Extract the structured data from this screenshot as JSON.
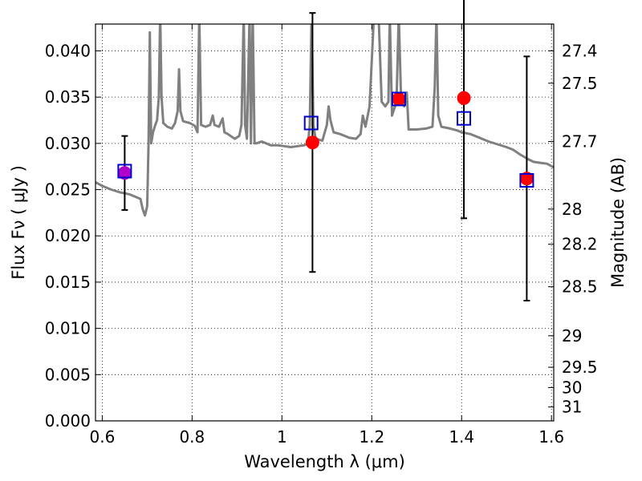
{
  "chart_data": {
    "type": "scatter",
    "xlabel": "Wavelength  λ (μm)",
    "ylabel": "Flux  Fν  ( μJy )",
    "ylabel_right": "Magnitude (AB)",
    "xlim": [
      0.585,
      1.605
    ],
    "ylim": [
      0.0,
      0.0429
    ],
    "grid": true,
    "x_ticks": [
      0.6,
      0.8,
      1.0,
      1.2,
      1.4,
      1.6
    ],
    "x_tick_labels": [
      "0.6",
      "0.8",
      "1",
      "1.2",
      "1.4",
      "1.6"
    ],
    "y_ticks": [
      0.0,
      0.005,
      0.01,
      0.015,
      0.02,
      0.025,
      0.03,
      0.035,
      0.04
    ],
    "y_tick_labels": [
      "0.000",
      "0.005",
      "0.010",
      "0.015",
      "0.020",
      "0.025",
      "0.030",
      "0.035",
      "0.040"
    ],
    "right_ticks": [
      {
        "label": "27.4",
        "flux": 0.04
      },
      {
        "label": "27.5",
        "flux": 0.0365
      },
      {
        "label": "27.7",
        "flux": 0.0302
      },
      {
        "label": "28",
        "flux": 0.0229
      },
      {
        "label": "28.2",
        "flux": 0.0191
      },
      {
        "label": "28.5",
        "flux": 0.0145
      },
      {
        "label": "29",
        "flux": 0.0092
      },
      {
        "label": "29.5",
        "flux": 0.0058
      },
      {
        "label": "30",
        "flux": 0.0036
      },
      {
        "label": "31",
        "flux": 0.0015
      }
    ],
    "series": [
      {
        "kind": "model-spectrum",
        "color": "#808080",
        "points": [
          [
            0.585,
            0.0258
          ],
          [
            0.6,
            0.0254
          ],
          [
            0.62,
            0.025
          ],
          [
            0.64,
            0.0247
          ],
          [
            0.66,
            0.0245
          ],
          [
            0.675,
            0.0242
          ],
          [
            0.685,
            0.024
          ],
          [
            0.69,
            0.0229
          ],
          [
            0.695,
            0.0222
          ],
          [
            0.7,
            0.0232
          ],
          [
            0.703,
            0.03
          ],
          [
            0.706,
            0.042
          ],
          [
            0.709,
            0.03
          ],
          [
            0.713,
            0.0312
          ],
          [
            0.718,
            0.032
          ],
          [
            0.722,
            0.0325
          ],
          [
            0.726,
            0.035
          ],
          [
            0.729,
            0.044
          ],
          [
            0.732,
            0.035
          ],
          [
            0.736,
            0.0322
          ],
          [
            0.745,
            0.0318
          ],
          [
            0.755,
            0.0316
          ],
          [
            0.762,
            0.0322
          ],
          [
            0.768,
            0.0335
          ],
          [
            0.771,
            0.038
          ],
          [
            0.774,
            0.0335
          ],
          [
            0.78,
            0.0324
          ],
          [
            0.795,
            0.0322
          ],
          [
            0.806,
            0.0319
          ],
          [
            0.812,
            0.0312
          ],
          [
            0.816,
            0.044
          ],
          [
            0.82,
            0.032
          ],
          [
            0.83,
            0.0318
          ],
          [
            0.84,
            0.032
          ],
          [
            0.846,
            0.033
          ],
          [
            0.85,
            0.032
          ],
          [
            0.86,
            0.0318
          ],
          [
            0.868,
            0.0327
          ],
          [
            0.872,
            0.0312
          ],
          [
            0.88,
            0.031
          ],
          [
            0.895,
            0.0305
          ],
          [
            0.905,
            0.0308
          ],
          [
            0.91,
            0.032
          ],
          [
            0.915,
            0.044
          ],
          [
            0.918,
            0.032
          ],
          [
            0.922,
            0.0305
          ],
          [
            0.928,
            0.044
          ],
          [
            0.931,
            0.03
          ],
          [
            0.935,
            0.044
          ],
          [
            0.939,
            0.03
          ],
          [
            0.943,
            0.03
          ],
          [
            0.955,
            0.0302
          ],
          [
            0.965,
            0.03
          ],
          [
            0.975,
            0.0298
          ],
          [
            0.99,
            0.0298
          ],
          [
            1.005,
            0.0297
          ],
          [
            1.02,
            0.0296
          ],
          [
            1.035,
            0.0297
          ],
          [
            1.05,
            0.0298
          ],
          [
            1.058,
            0.03
          ],
          [
            1.062,
            0.032
          ],
          [
            1.066,
            0.044
          ],
          [
            1.07,
            0.032
          ],
          [
            1.075,
            0.0305
          ],
          [
            1.09,
            0.0303
          ],
          [
            1.1,
            0.032
          ],
          [
            1.104,
            0.034
          ],
          [
            1.108,
            0.0325
          ],
          [
            1.115,
            0.0312
          ],
          [
            1.13,
            0.031
          ],
          [
            1.15,
            0.0306
          ],
          [
            1.165,
            0.0305
          ],
          [
            1.175,
            0.031
          ],
          [
            1.18,
            0.033
          ],
          [
            1.186,
            0.0318
          ],
          [
            1.195,
            0.034
          ],
          [
            1.205,
            0.044
          ],
          [
            1.215,
            0.044
          ],
          [
            1.222,
            0.0345
          ],
          [
            1.23,
            0.034
          ],
          [
            1.237,
            0.0345
          ],
          [
            1.24,
            0.044
          ],
          [
            1.245,
            0.033
          ],
          [
            1.255,
            0.0345
          ],
          [
            1.26,
            0.044
          ],
          [
            1.265,
            0.035
          ],
          [
            1.272,
            0.034
          ],
          [
            1.278,
            0.0355
          ],
          [
            1.282,
            0.0315
          ],
          [
            1.3,
            0.0315
          ],
          [
            1.32,
            0.0316
          ],
          [
            1.335,
            0.0318
          ],
          [
            1.34,
            0.036
          ],
          [
            1.344,
            0.044
          ],
          [
            1.348,
            0.033
          ],
          [
            1.355,
            0.0318
          ],
          [
            1.375,
            0.0316
          ],
          [
            1.39,
            0.0314
          ],
          [
            1.4,
            0.0312
          ],
          [
            1.42,
            0.031
          ],
          [
            1.44,
            0.0306
          ],
          [
            1.46,
            0.0302
          ],
          [
            1.48,
            0.0299
          ],
          [
            1.5,
            0.0296
          ],
          [
            1.515,
            0.0293
          ],
          [
            1.53,
            0.0288
          ],
          [
            1.548,
            0.0283
          ],
          [
            1.56,
            0.028
          ],
          [
            1.575,
            0.0279
          ],
          [
            1.59,
            0.0278
          ],
          [
            1.605,
            0.0274
          ]
        ]
      },
      {
        "kind": "observed",
        "marker": "circle",
        "color": "#ff0000",
        "points": [
          {
            "x": 0.65,
            "y": 0.0268,
            "err": 0.004,
            "color": "#b100c8"
          },
          {
            "x": 1.068,
            "y": 0.0301,
            "err": 0.014
          },
          {
            "x": 1.26,
            "y": 0.0348,
            "err": null
          },
          {
            "x": 1.405,
            "y": 0.0349,
            "err": 0.013
          },
          {
            "x": 1.545,
            "y": 0.0262,
            "err": 0.0132
          }
        ]
      },
      {
        "kind": "model-synthetic",
        "marker": "square",
        "color": "#0000cc",
        "points": [
          {
            "x": 0.65,
            "y": 0.027
          },
          {
            "x": 1.065,
            "y": 0.0322
          },
          {
            "x": 1.26,
            "y": 0.0348
          },
          {
            "x": 1.405,
            "y": 0.0327
          },
          {
            "x": 1.545,
            "y": 0.026
          }
        ]
      }
    ]
  }
}
